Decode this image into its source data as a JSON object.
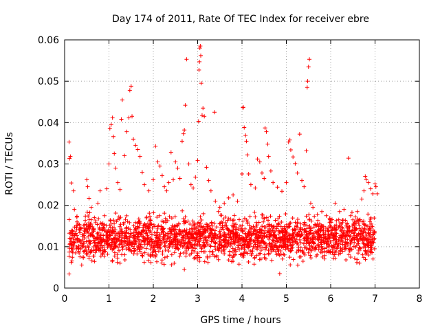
{
  "chart_data": {
    "type": "scatter",
    "title": "Day 174 of 2011, Rate Of TEC Index for receiver ebre",
    "xlabel": "GPS time / hours",
    "ylabel": "ROTI / TECUs",
    "xlim": [
      0,
      8
    ],
    "ylim": [
      0,
      0.06
    ],
    "x_ticks": [
      0,
      1,
      2,
      3,
      4,
      5,
      6,
      7,
      8
    ],
    "y_ticks": [
      0,
      0.01,
      0.02,
      0.03,
      0.04,
      0.05,
      0.06
    ],
    "x_tick_labels": [
      "0",
      "1",
      "2",
      "3",
      "4",
      "5",
      "6",
      "7",
      "8"
    ],
    "y_tick_labels": [
      "0",
      "0.01",
      "0.02",
      "0.03",
      "0.04",
      "0.05",
      "0.06"
    ],
    "grid": true,
    "marker": "+",
    "color": "#ff0000",
    "series": [
      {
        "name": "ROTI",
        "points": [
          [
            0.1,
            0.0034
          ],
          [
            0.1,
            0.0353
          ],
          [
            0.11,
            0.0313
          ],
          [
            0.13,
            0.0318
          ],
          [
            0.15,
            0.0254
          ],
          [
            0.2,
            0.0235
          ],
          [
            0.22,
            0.019
          ],
          [
            0.28,
            0.016
          ],
          [
            0.35,
            0.014
          ],
          [
            0.4,
            0.0125
          ],
          [
            0.5,
            0.0262
          ],
          [
            0.52,
            0.0245
          ],
          [
            0.55,
            0.0217
          ],
          [
            0.6,
            0.0195
          ],
          [
            0.7,
            0.0158
          ],
          [
            0.75,
            0.0205
          ],
          [
            0.8,
            0.0235
          ],
          [
            0.9,
            0.0175
          ],
          [
            0.95,
            0.024
          ],
          [
            1.0,
            0.03
          ],
          [
            1.02,
            0.0386
          ],
          [
            1.05,
            0.0395
          ],
          [
            1.08,
            0.0412
          ],
          [
            1.1,
            0.0366
          ],
          [
            1.12,
            0.0325
          ],
          [
            1.15,
            0.029
          ],
          [
            1.2,
            0.0255
          ],
          [
            1.25,
            0.0238
          ],
          [
            1.28,
            0.0408
          ],
          [
            1.3,
            0.0455
          ],
          [
            1.35,
            0.032
          ],
          [
            1.4,
            0.0378
          ],
          [
            1.45,
            0.0412
          ],
          [
            1.47,
            0.0478
          ],
          [
            1.5,
            0.0488
          ],
          [
            1.52,
            0.0415
          ],
          [
            1.55,
            0.036
          ],
          [
            1.6,
            0.0345
          ],
          [
            1.65,
            0.0335
          ],
          [
            1.7,
            0.0318
          ],
          [
            1.75,
            0.028
          ],
          [
            1.8,
            0.025
          ],
          [
            1.9,
            0.0235
          ],
          [
            2.0,
            0.0262
          ],
          [
            2.05,
            0.0343
          ],
          [
            2.1,
            0.0305
          ],
          [
            2.15,
            0.0295
          ],
          [
            2.2,
            0.0272
          ],
          [
            2.25,
            0.0245
          ],
          [
            2.3,
            0.0235
          ],
          [
            2.35,
            0.0255
          ],
          [
            2.4,
            0.0328
          ],
          [
            2.45,
            0.0262
          ],
          [
            2.5,
            0.0305
          ],
          [
            2.55,
            0.029
          ],
          [
            2.6,
            0.0265
          ],
          [
            2.65,
            0.0355
          ],
          [
            2.68,
            0.0373
          ],
          [
            2.7,
            0.0382
          ],
          [
            2.72,
            0.0442
          ],
          [
            2.75,
            0.0553
          ],
          [
            2.8,
            0.03
          ],
          [
            2.85,
            0.025
          ],
          [
            2.9,
            0.0242
          ],
          [
            2.95,
            0.0268
          ],
          [
            3.0,
            0.0308
          ],
          [
            3.02,
            0.0403
          ],
          [
            3.03,
            0.0527
          ],
          [
            3.04,
            0.0547
          ],
          [
            3.05,
            0.058
          ],
          [
            3.06,
            0.0585
          ],
          [
            3.07,
            0.0562
          ],
          [
            3.08,
            0.0495
          ],
          [
            3.1,
            0.0418
          ],
          [
            3.12,
            0.0435
          ],
          [
            3.15,
            0.0415
          ],
          [
            3.2,
            0.0292
          ],
          [
            3.25,
            0.026
          ],
          [
            3.3,
            0.0235
          ],
          [
            3.38,
            0.0425
          ],
          [
            3.4,
            0.021
          ],
          [
            3.5,
            0.0195
          ],
          [
            3.6,
            0.0205
          ],
          [
            3.7,
            0.0218
          ],
          [
            3.8,
            0.0225
          ],
          [
            3.9,
            0.021
          ],
          [
            4.0,
            0.0276
          ],
          [
            4.02,
            0.0436
          ],
          [
            4.03,
            0.0437
          ],
          [
            4.05,
            0.0388
          ],
          [
            4.08,
            0.0369
          ],
          [
            4.1,
            0.0355
          ],
          [
            4.12,
            0.0322
          ],
          [
            4.15,
            0.0276
          ],
          [
            4.2,
            0.025
          ],
          [
            4.3,
            0.0242
          ],
          [
            4.35,
            0.0312
          ],
          [
            4.4,
            0.0305
          ],
          [
            4.45,
            0.0278
          ],
          [
            4.5,
            0.0265
          ],
          [
            4.52,
            0.0387
          ],
          [
            4.55,
            0.0378
          ],
          [
            4.58,
            0.0348
          ],
          [
            4.6,
            0.0318
          ],
          [
            4.65,
            0.0283
          ],
          [
            4.7,
            0.0255
          ],
          [
            4.8,
            0.0244
          ],
          [
            4.9,
            0.0234
          ],
          [
            5.0,
            0.0255
          ],
          [
            5.05,
            0.0353
          ],
          [
            5.08,
            0.0358
          ],
          [
            5.1,
            0.0334
          ],
          [
            5.15,
            0.0317
          ],
          [
            5.2,
            0.0301
          ],
          [
            5.25,
            0.0278
          ],
          [
            5.3,
            0.0372
          ],
          [
            5.35,
            0.026
          ],
          [
            5.4,
            0.0245
          ],
          [
            5.45,
            0.0332
          ],
          [
            5.47,
            0.0485
          ],
          [
            5.48,
            0.05
          ],
          [
            5.5,
            0.0535
          ],
          [
            5.52,
            0.0553
          ],
          [
            5.55,
            0.0205
          ],
          [
            5.6,
            0.0195
          ],
          [
            5.7,
            0.0178
          ],
          [
            5.8,
            0.0185
          ],
          [
            5.9,
            0.0175
          ],
          [
            6.0,
            0.0165
          ],
          [
            6.1,
            0.0205
          ],
          [
            6.2,
            0.0185
          ],
          [
            6.3,
            0.019
          ],
          [
            6.4,
            0.0314
          ],
          [
            6.45,
            0.0175
          ],
          [
            6.5,
            0.0165
          ],
          [
            6.6,
            0.0185
          ],
          [
            6.7,
            0.0215
          ],
          [
            6.75,
            0.0235
          ],
          [
            6.78,
            0.027
          ],
          [
            6.8,
            0.0262
          ],
          [
            6.85,
            0.0255
          ],
          [
            6.9,
            0.024
          ],
          [
            6.95,
            0.0228
          ],
          [
            7.0,
            0.0252
          ],
          [
            7.02,
            0.0245
          ],
          [
            7.05,
            0.0228
          ],
          [
            6.95,
            0.011
          ],
          [
            6.7,
            0.0128
          ],
          [
            4.85,
            0.0035
          ],
          [
            2.7,
            0.0045
          ],
          [
            1.25,
            0.006
          ],
          [
            0.15,
            0.0062
          ],
          [
            3.7,
            0.0068
          ],
          [
            5.3,
            0.0075
          ],
          [
            6.1,
            0.0072
          ]
        ],
        "dense_band": {
          "x_range": [
            0.1,
            7.0
          ],
          "y_center": 0.012,
          "y_spread": 0.0045,
          "approx_count": 2100
        }
      }
    ]
  }
}
